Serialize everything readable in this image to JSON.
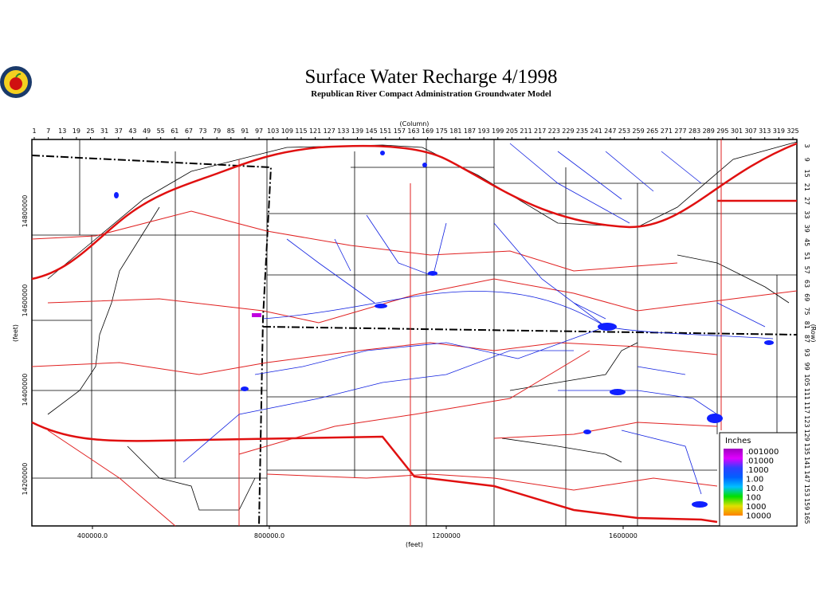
{
  "header": {
    "title": "Surface Water Recharge 4/1998",
    "subtitle": "Republican River Compact Administration Groundwater Model"
  },
  "axes": {
    "column_label": "(Column)",
    "row_label": "(Row)",
    "x_feet_label": "(feet)",
    "y_feet_label": "(feet)",
    "columns": [
      1,
      7,
      13,
      19,
      25,
      31,
      37,
      43,
      49,
      55,
      61,
      67,
      73,
      79,
      85,
      91,
      97,
      103,
      109,
      115,
      121,
      127,
      133,
      139,
      145,
      151,
      157,
      163,
      169,
      175,
      181,
      187,
      193,
      199,
      205,
      211,
      217,
      223,
      229,
      235,
      241,
      247,
      253,
      259,
      265,
      271,
      277,
      283,
      289,
      295,
      301,
      307,
      313,
      319,
      325
    ],
    "rows": [
      3,
      9,
      15,
      21,
      27,
      33,
      39,
      45,
      51,
      57,
      63,
      69,
      75,
      81,
      87,
      93,
      99,
      105,
      111,
      117,
      123,
      129,
      135,
      141,
      147,
      153,
      159,
      165
    ],
    "x_feet": [
      "400000.0",
      "800000.0",
      "1200000",
      "1600000"
    ],
    "y_feet": [
      "14800000",
      "14600000",
      "14400000",
      "14200000"
    ]
  },
  "legend": {
    "title": "Inches",
    "labels": [
      ".001000",
      ".01000",
      ".1000",
      "1.00",
      "10.0",
      "100",
      "1000",
      "10000"
    ],
    "colors": [
      "#a000c0",
      "#e000ff",
      "#3040ff",
      "#0060ff",
      "#00c0ff",
      "#00e000",
      "#e0e000",
      "#ff8000"
    ]
  }
}
